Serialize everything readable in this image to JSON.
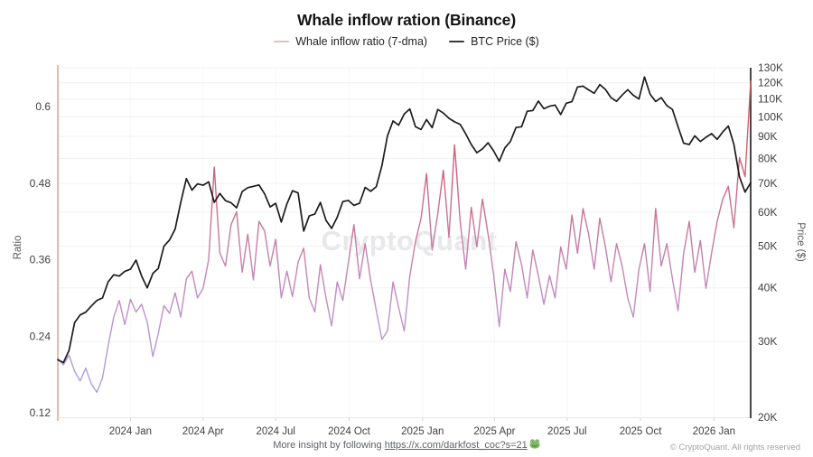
{
  "header": {
    "title": "Whale inflow ration (Binance)"
  },
  "legend": {
    "items": [
      {
        "label": "Whale inflow ratio (7-dma)",
        "color": "#e3bfc1"
      },
      {
        "label": "BTC Price ($)",
        "color": "#3a3a3a"
      }
    ]
  },
  "watermark": "CryptoQuant",
  "footer": {
    "prefix": "More insight by following ",
    "link": "https://x.com/darkfost_coc?s=21",
    "emoji": "🐸",
    "copyright": "© CryptoQuant. All rights reserved"
  },
  "colors": {
    "left_axis_line": "#edb7a9",
    "right_axis_line": "#474747",
    "bottom_axis_line": "#e6e6e6",
    "grid_horizontal": "#f0f0f0",
    "grid_vertical": "#f7f7f7",
    "tick_mark": "#d4d4d4",
    "tick_label": "#404040",
    "btc_line": "#1c1c1c"
  },
  "chart_data": {
    "type": "line",
    "title": "Whale inflow ration (Binance)",
    "x_axis": {
      "start_date": "2023-10-02",
      "step_days": 7,
      "points": 125,
      "ticks": [
        {
          "date": "2024-01-01",
          "label": "2024 Jan"
        },
        {
          "date": "2024-04-01",
          "label": "2024 Apr"
        },
        {
          "date": "2024-07-01",
          "label": "2024 Jul"
        },
        {
          "date": "2024-10-01",
          "label": "2024 Oct"
        },
        {
          "date": "2025-01-01",
          "label": "2025 Jan"
        },
        {
          "date": "2025-04-01",
          "label": "2025 Apr"
        },
        {
          "date": "2025-07-01",
          "label": "2025 Jul"
        },
        {
          "date": "2025-10-01",
          "label": "2025 Oct"
        },
        {
          "date": "2026-01-01",
          "label": "2026 Jan"
        }
      ]
    },
    "y_left": {
      "label": "Ratio",
      "ticks": [
        0.12,
        0.24,
        0.36,
        0.48,
        0.6
      ],
      "range": [
        0.109,
        0.661
      ],
      "scale": "linear"
    },
    "y_right": {
      "label": "Price ($)",
      "ticks_k": [
        20,
        30,
        40,
        50,
        60,
        70,
        80,
        90,
        100,
        110,
        120,
        130
      ],
      "tick_suffix": "K",
      "range_k": [
        19.7,
        130.2
      ],
      "scale": "log"
    },
    "grid": {
      "horizontal": "price_ticks",
      "vertical": "quarter_ticks"
    },
    "legend_position": "top",
    "series": [
      {
        "name": "Whale inflow ratio (7-dma)",
        "axis": "left",
        "color_gradient_bottom_to_top": [
          "#a8a3e6",
          "#b29bdd",
          "#bd92cc",
          "#c584b3",
          "#cb7495",
          "#d05f78",
          "#dc5f66",
          "#e86060"
        ],
        "values": [
          0.205,
          0.195,
          0.21,
          0.185,
          0.17,
          0.19,
          0.165,
          0.152,
          0.175,
          0.225,
          0.27,
          0.296,
          0.258,
          0.298,
          0.278,
          0.29,
          0.262,
          0.208,
          0.245,
          0.288,
          0.276,
          0.308,
          0.27,
          0.33,
          0.342,
          0.3,
          0.315,
          0.36,
          0.505,
          0.37,
          0.35,
          0.415,
          0.435,
          0.34,
          0.4,
          0.328,
          0.42,
          0.405,
          0.35,
          0.392,
          0.3,
          0.342,
          0.302,
          0.356,
          0.378,
          0.3,
          0.278,
          0.352,
          0.3,
          0.256,
          0.325,
          0.296,
          0.355,
          0.415,
          0.33,
          0.385,
          0.327,
          0.28,
          0.235,
          0.248,
          0.325,
          0.285,
          0.248,
          0.335,
          0.388,
          0.425,
          0.495,
          0.375,
          0.432,
          0.5,
          0.395,
          0.54,
          0.42,
          0.345,
          0.442,
          0.38,
          0.455,
          0.4,
          0.336,
          0.255,
          0.345,
          0.31,
          0.388,
          0.352,
          0.3,
          0.375,
          0.335,
          0.29,
          0.335,
          0.3,
          0.38,
          0.345,
          0.43,
          0.37,
          0.44,
          0.4,
          0.345,
          0.425,
          0.38,
          0.325,
          0.385,
          0.35,
          0.3,
          0.27,
          0.345,
          0.385,
          0.31,
          0.44,
          0.35,
          0.385,
          0.33,
          0.28,
          0.37,
          0.42,
          0.34,
          0.39,
          0.315,
          0.37,
          0.42,
          0.455,
          0.475,
          0.41,
          0.52,
          0.49,
          0.64
        ]
      },
      {
        "name": "BTC Price ($)",
        "axis": "right",
        "color": "#1c1c1c",
        "values_usd_k": [
          27.2,
          26.8,
          28.6,
          33.2,
          34.6,
          35.1,
          36.3,
          37.4,
          37.9,
          41.3,
          42.9,
          42.6,
          43.7,
          44.2,
          46.4,
          42.6,
          40.0,
          43.2,
          44.4,
          50.0,
          51.7,
          54.8,
          63.2,
          71.8,
          67.5,
          69.8,
          69.3,
          70.6,
          63.2,
          66.3,
          63.8,
          63.1,
          61.4,
          67.0,
          68.4,
          68.9,
          69.4,
          66.2,
          61.7,
          62.9,
          56.9,
          62.7,
          67.3,
          66.5,
          54.2,
          58.8,
          59.4,
          63.2,
          57.4,
          55.0,
          58.4,
          63.5,
          63.9,
          62.2,
          62.9,
          68.5,
          67.1,
          68.8,
          77.0,
          90.2,
          97.8,
          95.6,
          101.5,
          104.3,
          94.8,
          93.4,
          98.5,
          94.3,
          104.0,
          102.0,
          99.2,
          97.3,
          96.0,
          91.3,
          86.2,
          82.5,
          84.2,
          87.0,
          83.3,
          78.8,
          84.6,
          87.6,
          94.4,
          94.8,
          103.0,
          103.4,
          108.8,
          104.4,
          105.8,
          106.5,
          101.2,
          107.5,
          108.4,
          117.3,
          117.8,
          115.5,
          113.4,
          118.8,
          115.8,
          110.8,
          108.6,
          112.3,
          115.6,
          112.2,
          110.0,
          123.8,
          112.8,
          108.5,
          110.8,
          106.2,
          104.0,
          94.8,
          86.8,
          86.2,
          90.3,
          87.6,
          89.6,
          91.4,
          88.6,
          92.2,
          95.2,
          86.3,
          72.5,
          66.8,
          70.2
        ]
      }
    ]
  }
}
